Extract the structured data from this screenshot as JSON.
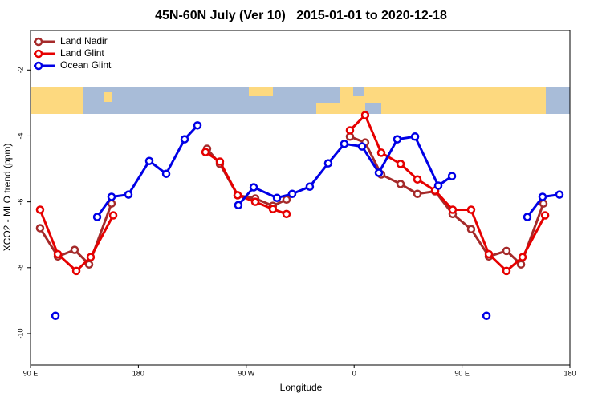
{
  "chart_data": {
    "type": "line",
    "title": "45N-60N July (Ver 10)   2015-01-01 to 2020-12-18",
    "x_label": "Longitude",
    "y_label": "XCO2 - MLO trend (ppm)",
    "xlim": [
      90,
      540
    ],
    "ylim": [
      -10.95,
      -0.8
    ],
    "xticks": [
      {
        "value": 90,
        "label": "90 E"
      },
      {
        "value": 180,
        "label": "180"
      },
      {
        "value": 270,
        "label": "90 W"
      },
      {
        "value": 360,
        "label": "0"
      },
      {
        "value": 450,
        "label": "90 E"
      },
      {
        "value": 540,
        "label": "180"
      }
    ],
    "yticks": [
      -2,
      -4,
      -6,
      -8,
      -10
    ],
    "legend": "top-left",
    "series": [
      {
        "name": "Land Nadir",
        "color": "#a52a2a",
        "x": [
          98,
          112.8,
          126.8,
          138.9,
          157.6,
          null,
          237.3,
          248,
          262.8,
          277.5,
          292.2,
          303.6,
          null,
          356.5,
          369.2,
          382.6,
          398.7,
          412.8,
          427.5,
          442.2,
          457.6,
          472.4,
          487.1,
          499.2,
          517.9
        ],
        "values": [
          -6.8,
          -7.66,
          -7.46,
          -7.9,
          -6.05,
          null,
          -4.39,
          -4.85,
          -5.8,
          -5.9,
          -6.12,
          -5.93,
          null,
          -4.02,
          -4.2,
          -5.17,
          -5.46,
          -5.76,
          -5.68,
          -6.37,
          -6.83,
          -7.66,
          -7.49,
          -7.9,
          -6.05
        ]
      },
      {
        "name": "Land Glint",
        "color": "#e60000",
        "x": [
          98,
          112.8,
          128.2,
          140.2,
          159,
          null,
          236,
          248,
          262.8,
          277.5,
          292.2,
          303.6,
          null,
          356.5,
          369.2,
          382.6,
          398.7,
          412.8,
          427.5,
          442.2,
          457.6,
          472.4,
          487.1,
          500.5,
          519.3
        ],
        "values": [
          -6.24,
          -7.59,
          -8.1,
          -7.68,
          -6.41,
          null,
          -4.49,
          -4.78,
          -5.8,
          -6.0,
          -6.22,
          -6.37,
          null,
          -3.83,
          -3.37,
          -4.51,
          -4.85,
          -5.32,
          -5.66,
          -6.24,
          -6.24,
          -7.59,
          -8.1,
          -7.68,
          -6.41
        ]
      },
      {
        "name": "Ocean Glint",
        "color": "#0000e6",
        "x": [
          110.8,
          null,
          145.6,
          157.6,
          171.7,
          189.1,
          203.2,
          218.6,
          229.3,
          null,
          263.4,
          276.2,
          295.6,
          308.3,
          323,
          338.4,
          351.8,
          366.6,
          380.6,
          396,
          410.8,
          430.2,
          441.6,
          null,
          470.4,
          null,
          504.5,
          517.2,
          531.3
        ],
        "values": [
          -9.46,
          null,
          -6.46,
          -5.85,
          -5.78,
          -4.76,
          -5.15,
          -4.1,
          -3.68,
          null,
          -6.1,
          -5.56,
          -5.88,
          -5.76,
          -5.54,
          -4.83,
          -4.24,
          -4.32,
          -5.12,
          -4.1,
          -4.02,
          -5.51,
          -5.22,
          null,
          -9.46,
          null,
          -6.46,
          -5.85,
          -5.78
        ]
      }
    ]
  }
}
